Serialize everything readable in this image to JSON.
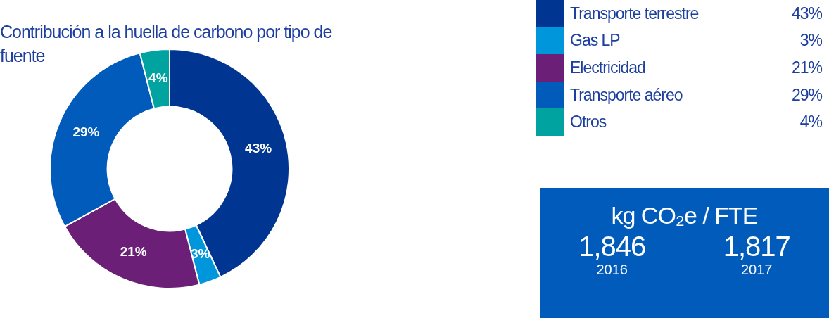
{
  "chart_data": [
    {
      "type": "donut",
      "title": "Contribución a la huella de carbono por tipo de fuente",
      "categories": [
        "Transporte terrestre",
        "Gas LP",
        "Electricidad",
        "Transporte aéreo",
        "Otros"
      ],
      "values": [
        43,
        3,
        21,
        29,
        4
      ],
      "value_labels": [
        "43%",
        "3%",
        "21%",
        "29%",
        "4%"
      ],
      "colors": [
        "#003591",
        "#0096dc",
        "#6b1f77",
        "#005bbb",
        "#00a3a0"
      ],
      "legend": "top right"
    },
    {
      "type": "other",
      "title": "kg CO₂e / FTE",
      "categories": [
        "2016",
        "2017"
      ],
      "values": [
        1846,
        1817
      ],
      "value_labels": [
        "1,846",
        "1,817"
      ],
      "color": "#005bbb"
    }
  ]
}
